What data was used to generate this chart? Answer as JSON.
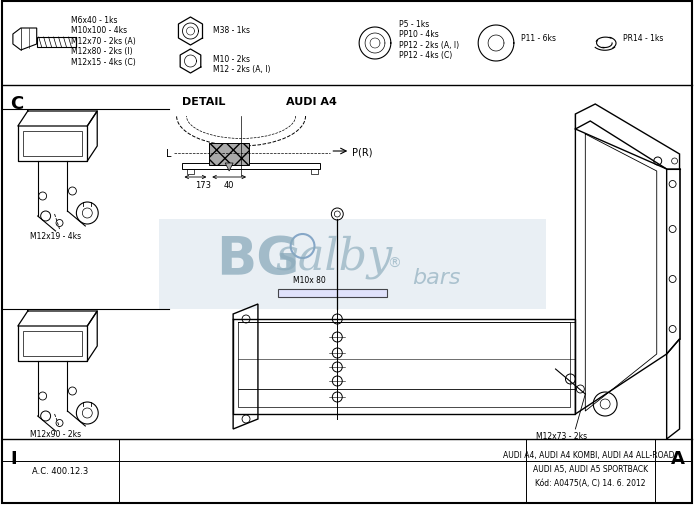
{
  "bg_color": "#ffffff",
  "line_color": "#000000",
  "logo_color": "#d0dde8",
  "top_parts_texts": [
    "M6x40 - 1ks\nM10x100 - 4ks\nM12x70 - 2ks (A)\nM12x80 - 2ks (I)\nM12x15 - 4ks (C)",
    "M38 - 1ks",
    "M10 - 2ks\nM12 - 2ks (A, I)",
    "P5 - 1ks\nPP10 - 4ks\nPP12 - 2ks (A, I)\nPP12 - 4ks (C)",
    "P11 - 6ks",
    "PR14 - 1ks"
  ],
  "detail_label": "DETAIL",
  "audi_label": "AUDI A4",
  "detail_dims": [
    "173",
    "40"
  ],
  "detail_labels2": [
    "L",
    "P(R)"
  ],
  "label_c": "C",
  "label_i": "I",
  "label_a": "A",
  "annotation_left_top": "M12x19 - 4ks",
  "annotation_left_bot": "M12x90 - 2ks",
  "annotation_right_bot": "M12x73 - 2ks",
  "annotation_center": "M10x 80",
  "bottom_info": "AUDI A4, AUDI A4 KOMBI, AUDI A4 ALL-ROAD,\nAUDI A5, AUDI A5 SPORTBACK\nKód: A0475(A, C) 14. 6. 2012",
  "bottom_code": "A.C. 400.12.3",
  "logo_registered": "®",
  "fig_width": 7.0,
  "fig_height": 5.06,
  "dpi": 100
}
